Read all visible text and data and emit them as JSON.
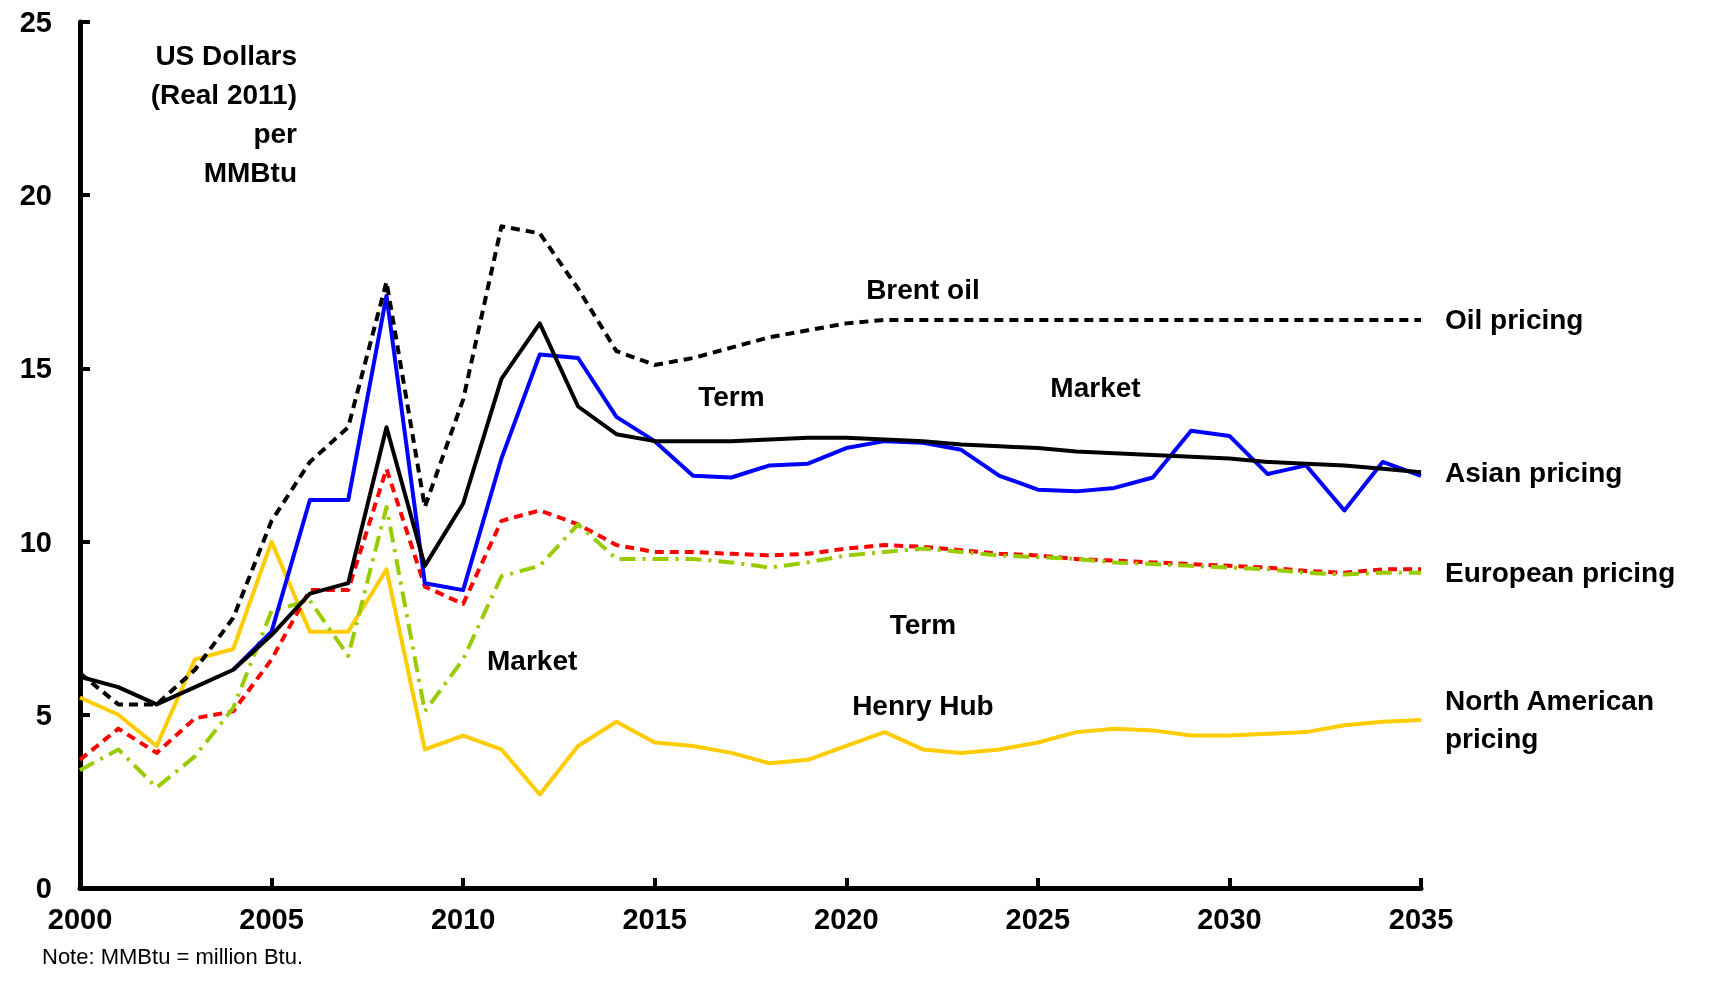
{
  "chart_data": {
    "type": "line",
    "ylabel": "US Dollars\n(Real 2011)\nper\nMMBtu",
    "x": [
      2000,
      2001,
      2002,
      2003,
      2004,
      2005,
      2006,
      2007,
      2008,
      2009,
      2010,
      2011,
      2012,
      2013,
      2014,
      2015,
      2016,
      2017,
      2018,
      2019,
      2020,
      2021,
      2022,
      2023,
      2024,
      2025,
      2026,
      2027,
      2028,
      2029,
      2030,
      2031,
      2032,
      2033,
      2034,
      2035
    ],
    "xlim": [
      2000,
      2035
    ],
    "xticks": [
      2000,
      2005,
      2010,
      2015,
      2020,
      2025,
      2030,
      2035
    ],
    "ylim": [
      0,
      25
    ],
    "yticks": [
      0,
      5,
      10,
      15,
      20,
      25
    ],
    "grid": false,
    "legend": false,
    "marker": "none",
    "series": [
      {
        "color": "#000000",
        "line_style": "dashed",
        "values": [
          6.2,
          5.3,
          5.3,
          6.3,
          7.8,
          10.6,
          12.3,
          13.3,
          17.5,
          11.0,
          14.1,
          19.1,
          18.9,
          17.3,
          15.5,
          15.1,
          15.3,
          15.6,
          15.9,
          16.1,
          16.3,
          16.4,
          16.4,
          16.4,
          16.4,
          16.4,
          16.4,
          16.4,
          16.4,
          16.4,
          16.4,
          16.4,
          16.4,
          16.4,
          16.4,
          16.4
        ]
      },
      {
        "color": "#000000",
        "line_style": "solid",
        "values": [
          6.1,
          5.8,
          5.3,
          5.8,
          6.3,
          7.3,
          8.5,
          8.8,
          13.3,
          9.3,
          11.1,
          14.7,
          16.3,
          13.9,
          13.1,
          12.9,
          12.9,
          12.9,
          12.95,
          13.0,
          13.0,
          12.95,
          12.9,
          12.8,
          12.75,
          12.7,
          12.6,
          12.55,
          12.5,
          12.45,
          12.4,
          12.3,
          12.25,
          12.2,
          12.1,
          12.0
        ]
      },
      {
        "color": "#0000ff",
        "line_style": "solid",
        "values": [
          null,
          null,
          null,
          null,
          6.3,
          7.4,
          11.2,
          11.2,
          17.1,
          8.8,
          8.6,
          12.4,
          15.4,
          15.3,
          13.6,
          12.9,
          11.9,
          11.85,
          12.2,
          12.25,
          12.7,
          12.9,
          12.85,
          12.65,
          11.9,
          11.5,
          11.45,
          11.55,
          11.85,
          13.2,
          13.05,
          11.95,
          12.2,
          10.9,
          12.3,
          11.9
        ]
      },
      {
        "color": "#99cc00",
        "line_style": "dashdot",
        "values": [
          3.4,
          4.0,
          2.9,
          3.8,
          5.2,
          8.0,
          8.3,
          6.7,
          11.0,
          5.1,
          6.6,
          9.0,
          9.3,
          10.5,
          9.5,
          9.5,
          9.5,
          9.4,
          9.25,
          9.4,
          9.6,
          9.7,
          9.8,
          9.7,
          9.6,
          9.55,
          9.5,
          9.4,
          9.35,
          9.3,
          9.25,
          9.2,
          9.1,
          9.05,
          9.1,
          9.1
        ]
      },
      {
        "color": "#ff0000",
        "line_style": "dashed",
        "values": [
          3.7,
          4.6,
          3.9,
          4.9,
          5.1,
          6.6,
          8.6,
          8.6,
          12.1,
          8.7,
          8.2,
          10.6,
          10.9,
          10.5,
          9.9,
          9.7,
          9.7,
          9.65,
          9.6,
          9.65,
          9.8,
          9.9,
          9.85,
          9.75,
          9.65,
          9.6,
          9.5,
          9.45,
          9.4,
          9.35,
          9.3,
          9.25,
          9.15,
          9.1,
          9.2,
          9.2
        ]
      },
      {
        "color": "#ffcc00",
        "line_style": "solid",
        "values": [
          5.5,
          5.0,
          4.1,
          6.6,
          6.9,
          10.0,
          7.4,
          7.4,
          9.2,
          4.0,
          4.4,
          4.0,
          2.7,
          4.1,
          4.8,
          4.2,
          4.1,
          3.9,
          3.6,
          3.7,
          4.1,
          4.5,
          4.0,
          3.9,
          4.0,
          4.2,
          4.5,
          4.6,
          4.55,
          4.4,
          4.4,
          4.45,
          4.5,
          4.7,
          4.8,
          4.85
        ]
      }
    ],
    "annotations": [
      {
        "text": "Brent oil",
        "x": 2022,
        "y": 16.4
      },
      {
        "text": "Term",
        "x": 2017,
        "y": 12.9
      },
      {
        "text": "Market",
        "x": 2027,
        "y": 12.55
      },
      {
        "text": "Term",
        "x": 2022,
        "y": 9.85
      },
      {
        "text": "Market",
        "x": 2010,
        "y": 8.6
      },
      {
        "text": "Henry Hub",
        "x": 2022,
        "y": 4.0
      },
      {
        "text": "Oil pricing",
        "x": 2035,
        "y": 16.4
      },
      {
        "text": "Asian pricing",
        "x": 2035,
        "y": 12.0
      },
      {
        "text": "European pricing",
        "x": 2035,
        "y": 9.1
      },
      {
        "text": "North American\npricing",
        "x": 2035,
        "y": 4.85
      },
      "Note: MMBtu = million Btu."
    ]
  }
}
